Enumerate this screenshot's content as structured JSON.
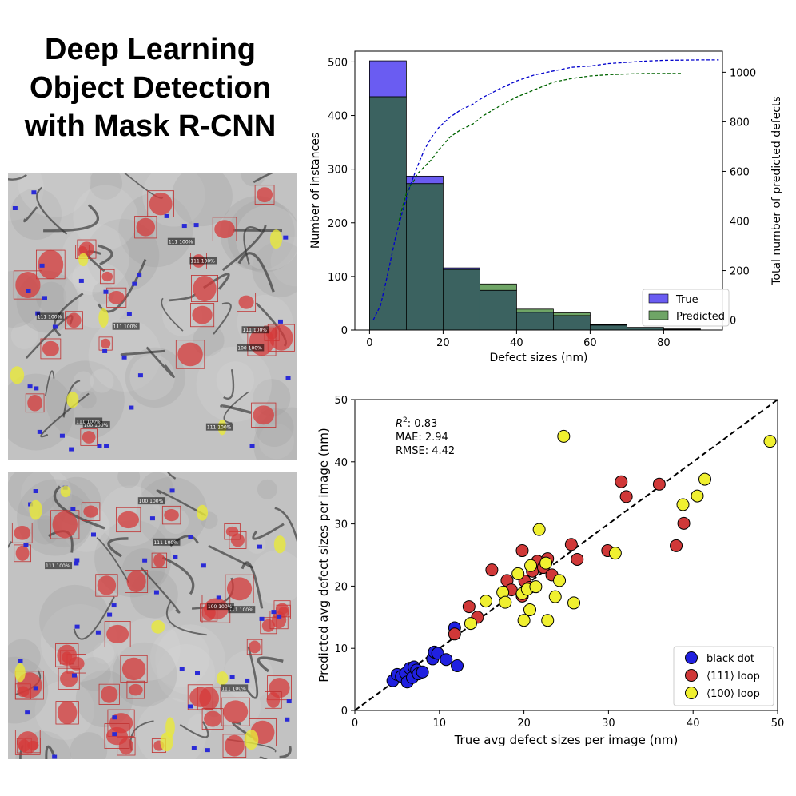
{
  "title_lines": [
    "Deep Learning",
    "Object Detection",
    "with Mask R-CNN"
  ],
  "micrographs": {
    "top": {
      "labels": [
        {
          "text": "100 100%",
          "kind": "100"
        },
        {
          "text": "111 100%",
          "kind": "111"
        },
        {
          "text": "111 100%",
          "kind": "111"
        },
        {
          "text": "111 100%",
          "kind": "111"
        },
        {
          "text": "100 100%",
          "kind": "100"
        },
        {
          "text": "111 100%",
          "kind": "111"
        },
        {
          "text": "111 100%",
          "kind": "111"
        },
        {
          "text": "111 100%",
          "kind": "111"
        },
        {
          "text": "111 100%",
          "kind": "111"
        }
      ]
    },
    "bottom": {
      "labels": [
        {
          "text": "100 100%",
          "kind": "100"
        },
        {
          "text": "111 100%",
          "kind": "111"
        },
        {
          "text": "111 100%",
          "kind": "111"
        },
        {
          "text": "100 100%",
          "kind": "100"
        },
        {
          "text": "111 100%",
          "kind": "111"
        },
        {
          "text": "111 100%",
          "kind": "111"
        }
      ]
    }
  },
  "colors": {
    "true": "#6a5cf2",
    "predicted": "#6fa566",
    "overlap": "#3b6260",
    "cum_true": "#0000cc",
    "cum_pred": "#006400",
    "black_dot": "#2020e0",
    "loop111": "#d03838",
    "loop100": "#f0f030",
    "mask_red": "#d63a3a",
    "mask_blue": "#2a2ad6",
    "mask_yellow": "#e8e83a"
  },
  "chart_data": [
    {
      "type": "bar",
      "xlabel": "Defect sizes (nm)",
      "ylabel": "Number of instances",
      "ylabel_right": "Total number of predicted defects",
      "xlim": [
        -4,
        96
      ],
      "ylim": [
        0,
        520
      ],
      "ylim_right": [
        -40,
        1085
      ],
      "x_ticks": [
        0,
        20,
        40,
        60,
        80
      ],
      "y_ticks": [
        0,
        100,
        200,
        300,
        400,
        500
      ],
      "y_ticks_right": [
        0,
        200,
        400,
        600,
        800,
        1000
      ],
      "bin_edges": [
        0,
        10,
        20,
        30,
        40,
        50,
        60,
        70,
        80,
        90
      ],
      "series": [
        {
          "name": "True",
          "values": [
            502,
            287,
            116,
            74,
            33,
            27,
            9,
            5,
            2
          ]
        },
        {
          "name": "Predicted",
          "values": [
            435,
            273,
            113,
            86,
            39,
            32,
            10,
            4,
            1
          ]
        }
      ],
      "cumulative": [
        {
          "name": "True",
          "x": [
            1,
            3,
            5,
            7,
            9,
            11,
            13,
            15,
            17,
            19,
            22,
            25,
            28,
            31,
            35,
            40,
            45,
            50,
            55,
            60,
            65,
            70,
            75,
            80,
            85,
            90,
            95
          ],
          "y": [
            0,
            60,
            190,
            330,
            440,
            540,
            620,
            690,
            740,
            780,
            820,
            850,
            870,
            900,
            930,
            965,
            990,
            1005,
            1020,
            1025,
            1035,
            1040,
            1045,
            1048,
            1049,
            1050,
            1050
          ]
        },
        {
          "name": "Predicted",
          "x": [
            8,
            9,
            10,
            11,
            12,
            13,
            15,
            17,
            19,
            22,
            25,
            28,
            31,
            35,
            40,
            45,
            50,
            55,
            60,
            65,
            70,
            75,
            80,
            85
          ],
          "y": [
            400,
            460,
            510,
            540,
            560,
            590,
            620,
            650,
            690,
            740,
            770,
            790,
            825,
            860,
            900,
            930,
            960,
            975,
            985,
            990,
            993,
            995,
            995,
            995
          ]
        }
      ],
      "legend": {
        "placement": "lower-right",
        "entries": [
          "True",
          "Predicted"
        ]
      }
    },
    {
      "type": "scatter",
      "xlabel": "True avg defect sizes per image (nm)",
      "ylabel": "Predicted avg defect sizes per image (nm)",
      "xlim": [
        0,
        50
      ],
      "ylim": [
        0,
        50
      ],
      "x_ticks": [
        0,
        10,
        20,
        30,
        40,
        50
      ],
      "y_ticks": [
        0,
        10,
        20,
        30,
        40,
        50
      ],
      "annotations": {
        "r2_symbol": "R",
        "r2_value": ": 0.83",
        "mae": "MAE: 2.94",
        "rmse": "RMSE: 4.42"
      },
      "legend": {
        "placement": "lower-right",
        "entries": [
          "black dot",
          "⟨111⟩ loop",
          "⟨100⟩ loop"
        ]
      },
      "series": [
        {
          "name": "black dot",
          "points": [
            [
              4.5,
              4.8
            ],
            [
              5.0,
              5.8
            ],
            [
              5.5,
              5.5
            ],
            [
              6.0,
              6.0
            ],
            [
              6.2,
              4.6
            ],
            [
              6.5,
              6.8
            ],
            [
              6.8,
              5.3
            ],
            [
              7.0,
              7.0
            ],
            [
              7.3,
              6.5
            ],
            [
              7.5,
              5.9
            ],
            [
              8.0,
              6.2
            ],
            [
              9.2,
              8.3
            ],
            [
              9.4,
              9.4
            ],
            [
              9.8,
              9.2
            ],
            [
              10.8,
              8.2
            ],
            [
              11.8,
              13.3
            ],
            [
              12.1,
              7.2
            ]
          ]
        },
        {
          "name": "⟨111⟩ loop",
          "points": [
            [
              11.8,
              12.3
            ],
            [
              13.5,
              16.7
            ],
            [
              14.5,
              15.0
            ],
            [
              16.2,
              22.6
            ],
            [
              18.0,
              20.9
            ],
            [
              18.5,
              19.4
            ],
            [
              19.8,
              25.7
            ],
            [
              19.8,
              18.4
            ],
            [
              20.1,
              20.8
            ],
            [
              20.7,
              19.8
            ],
            [
              21.0,
              22.4
            ],
            [
              21.6,
              24.0
            ],
            [
              22.3,
              23.0
            ],
            [
              22.8,
              24.4
            ],
            [
              23.3,
              21.8
            ],
            [
              25.6,
              26.7
            ],
            [
              26.3,
              24.3
            ],
            [
              29.9,
              25.7
            ],
            [
              31.5,
              36.8
            ],
            [
              32.1,
              34.4
            ],
            [
              36.0,
              36.4
            ],
            [
              38.0,
              26.5
            ],
            [
              38.9,
              30.1
            ]
          ]
        },
        {
          "name": "⟨100⟩ loop",
          "points": [
            [
              13.7,
              14.0
            ],
            [
              15.5,
              17.6
            ],
            [
              17.5,
              19.0
            ],
            [
              17.8,
              17.4
            ],
            [
              19.3,
              22.0
            ],
            [
              19.8,
              18.8
            ],
            [
              20.0,
              14.5
            ],
            [
              20.4,
              19.5
            ],
            [
              20.7,
              16.2
            ],
            [
              20.8,
              23.3
            ],
            [
              21.4,
              19.9
            ],
            [
              21.8,
              29.1
            ],
            [
              22.6,
              23.7
            ],
            [
              22.8,
              14.5
            ],
            [
              23.7,
              18.3
            ],
            [
              24.2,
              20.9
            ],
            [
              24.7,
              44.1
            ],
            [
              25.9,
              17.3
            ],
            [
              30.8,
              25.3
            ],
            [
              38.8,
              33.1
            ],
            [
              40.5,
              34.5
            ],
            [
              41.4,
              37.2
            ],
            [
              49.1,
              43.3
            ]
          ]
        }
      ]
    }
  ]
}
